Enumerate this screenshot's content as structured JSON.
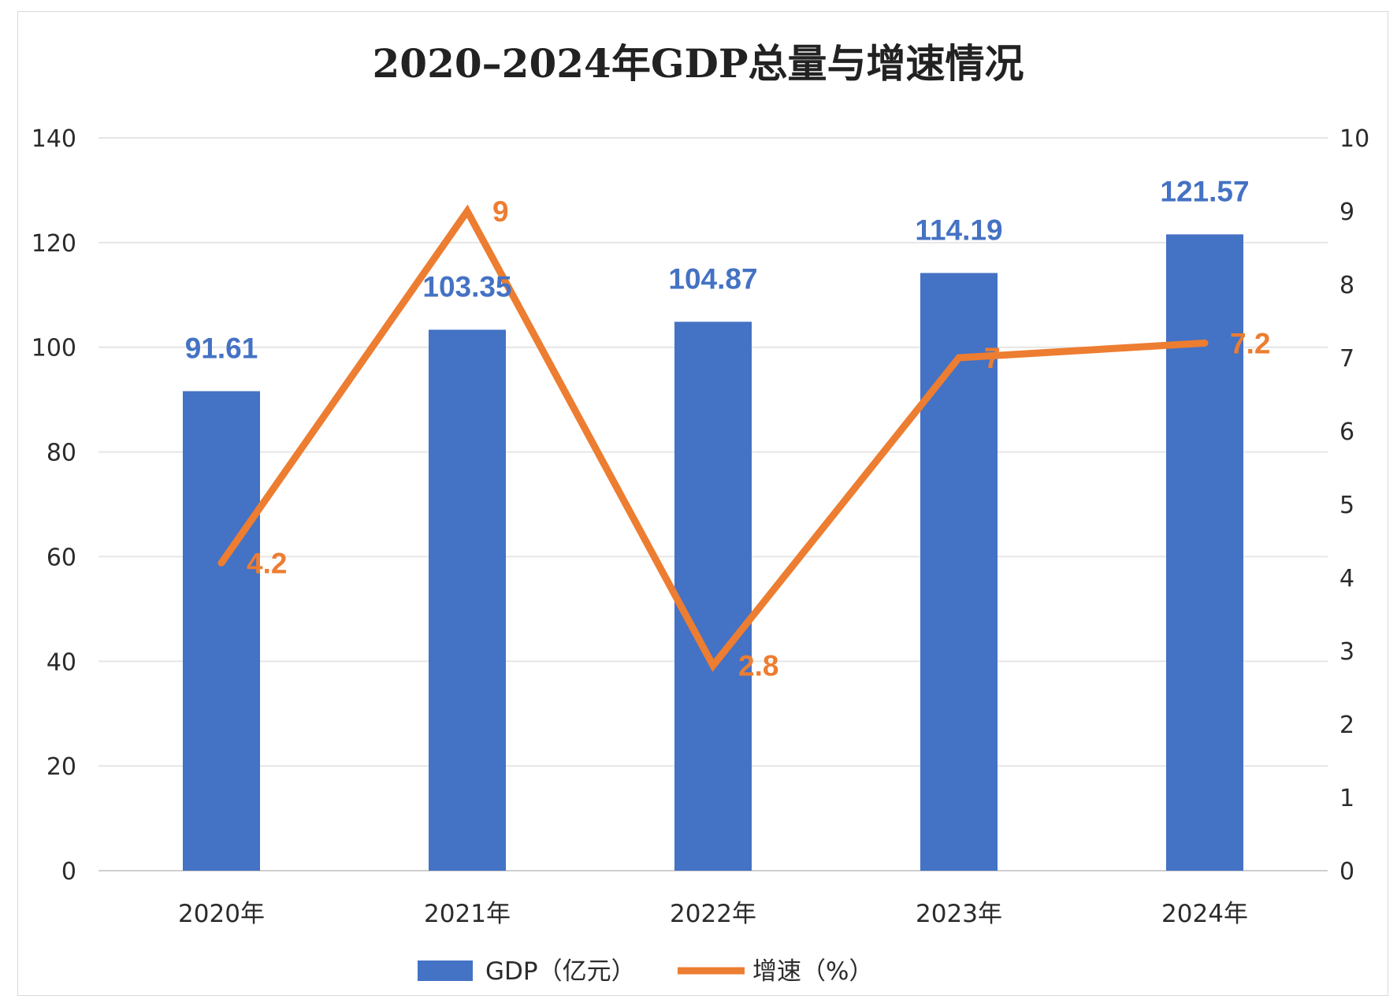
{
  "chart_data": {
    "type": "bar",
    "title": "2020–2024年GDP总量与增速情况",
    "categories": [
      "2020年",
      "2021年",
      "2022年",
      "2023年",
      "2024年"
    ],
    "series": [
      {
        "name": "GDP（亿元）",
        "type": "bar",
        "axis": "left",
        "color": "#4472C4",
        "values": [
          91.61,
          103.35,
          104.87,
          114.19,
          121.57
        ],
        "labels": [
          "91.61",
          "103.35",
          "104.87",
          "114.19",
          "121.57"
        ]
      },
      {
        "name": "增速（%）",
        "type": "line",
        "axis": "right",
        "color": "#ED7D31",
        "values": [
          4.2,
          9,
          2.8,
          7,
          7.2
        ],
        "labels": [
          "4.2",
          "9",
          "2.8",
          "7",
          "7.2"
        ]
      }
    ],
    "y_left": {
      "min": 0,
      "max": 140,
      "ticks": [
        "0",
        "20",
        "40",
        "60",
        "80",
        "100",
        "120",
        "140"
      ]
    },
    "y_right": {
      "min": 0,
      "max": 10,
      "ticks": [
        "0",
        "1",
        "2",
        "3",
        "4",
        "5",
        "6",
        "7",
        "8",
        "9",
        "10"
      ]
    },
    "grid": true,
    "legend_position": "bottom"
  }
}
